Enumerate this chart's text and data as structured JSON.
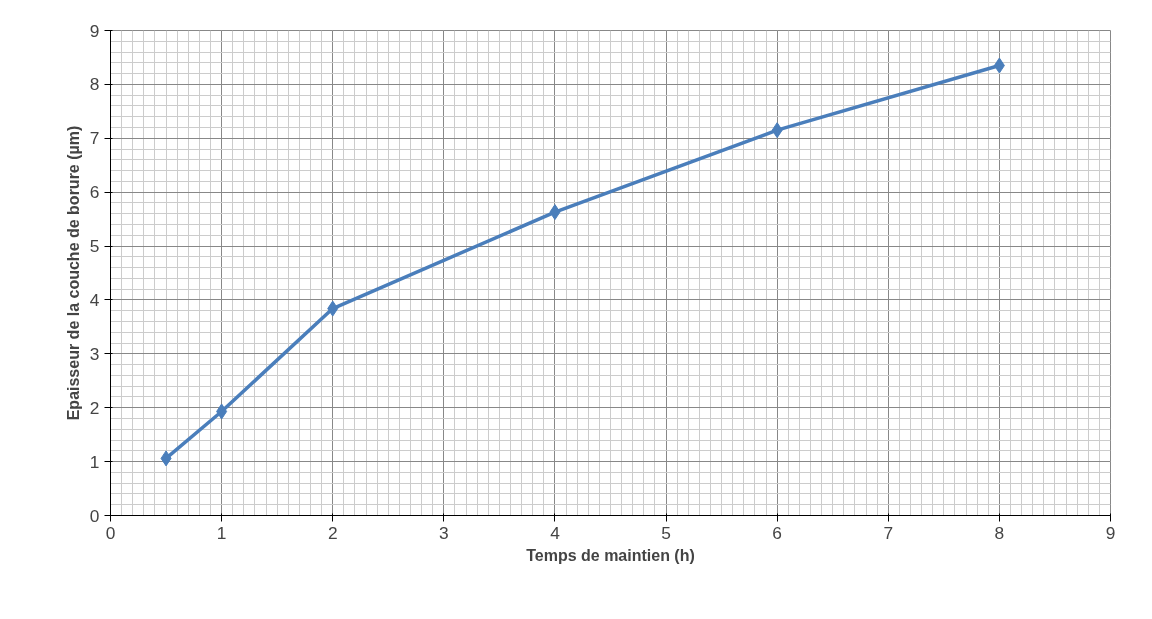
{
  "chart_data": {
    "type": "line",
    "xlabel": "Temps de maintien (h)",
    "ylabel": "Epaisseur de la couche de borure (µm)",
    "x": [
      0.5,
      1,
      2,
      4,
      6,
      8
    ],
    "series": [
      {
        "color": "#4a7ebb",
        "values": [
          1.06,
          1.93,
          3.84,
          5.63,
          7.15,
          8.35
        ]
      }
    ],
    "xlim": [
      0,
      9
    ],
    "ylim": [
      0,
      9
    ],
    "xticks": [
      0,
      1,
      2,
      3,
      4,
      5,
      6,
      7,
      8,
      9
    ],
    "yticks": [
      0,
      1,
      2,
      3,
      4,
      5,
      6,
      7,
      8,
      9
    ],
    "grid": true,
    "marker": "diamond",
    "line_style": "solid"
  }
}
